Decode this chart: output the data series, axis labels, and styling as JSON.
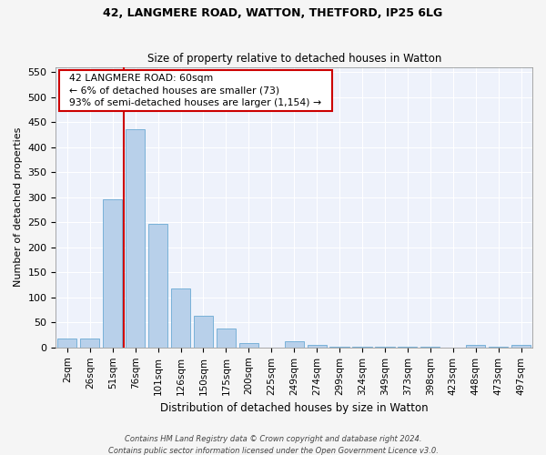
{
  "title1": "42, LANGMERE ROAD, WATTON, THETFORD, IP25 6LG",
  "title2": "Size of property relative to detached houses in Watton",
  "xlabel": "Distribution of detached houses by size in Watton",
  "ylabel": "Number of detached properties",
  "categories": [
    "2sqm",
    "26sqm",
    "51sqm",
    "76sqm",
    "101sqm",
    "126sqm",
    "150sqm",
    "175sqm",
    "200sqm",
    "225sqm",
    "249sqm",
    "274sqm",
    "299sqm",
    "324sqm",
    "349sqm",
    "373sqm",
    "398sqm",
    "423sqm",
    "448sqm",
    "473sqm",
    "497sqm"
  ],
  "values": [
    18,
    18,
    295,
    435,
    247,
    118,
    63,
    37,
    9,
    0,
    12,
    6,
    1,
    1,
    1,
    1,
    1,
    0,
    5,
    1,
    5
  ],
  "bar_color": "#b8d0ea",
  "bar_edge_color": "#6aaad4",
  "vline_x_index": 2.5,
  "vline_color": "#cc0000",
  "annotation_lines": [
    "  42 LANGMERE ROAD: 60sqm  ",
    "  ← 6% of detached houses are smaller (73)  ",
    "  93% of semi-detached houses are larger (1,154) →  "
  ],
  "annotation_box_color": "#cc0000",
  "ylim": [
    0,
    560
  ],
  "yticks": [
    0,
    50,
    100,
    150,
    200,
    250,
    300,
    350,
    400,
    450,
    500,
    550
  ],
  "axes_bg_color": "#eef2fb",
  "fig_bg_color": "#f5f5f5",
  "grid_color": "#ffffff",
  "footer1": "Contains HM Land Registry data © Crown copyright and database right 2024.",
  "footer2": "Contains public sector information licensed under the Open Government Licence v3.0."
}
